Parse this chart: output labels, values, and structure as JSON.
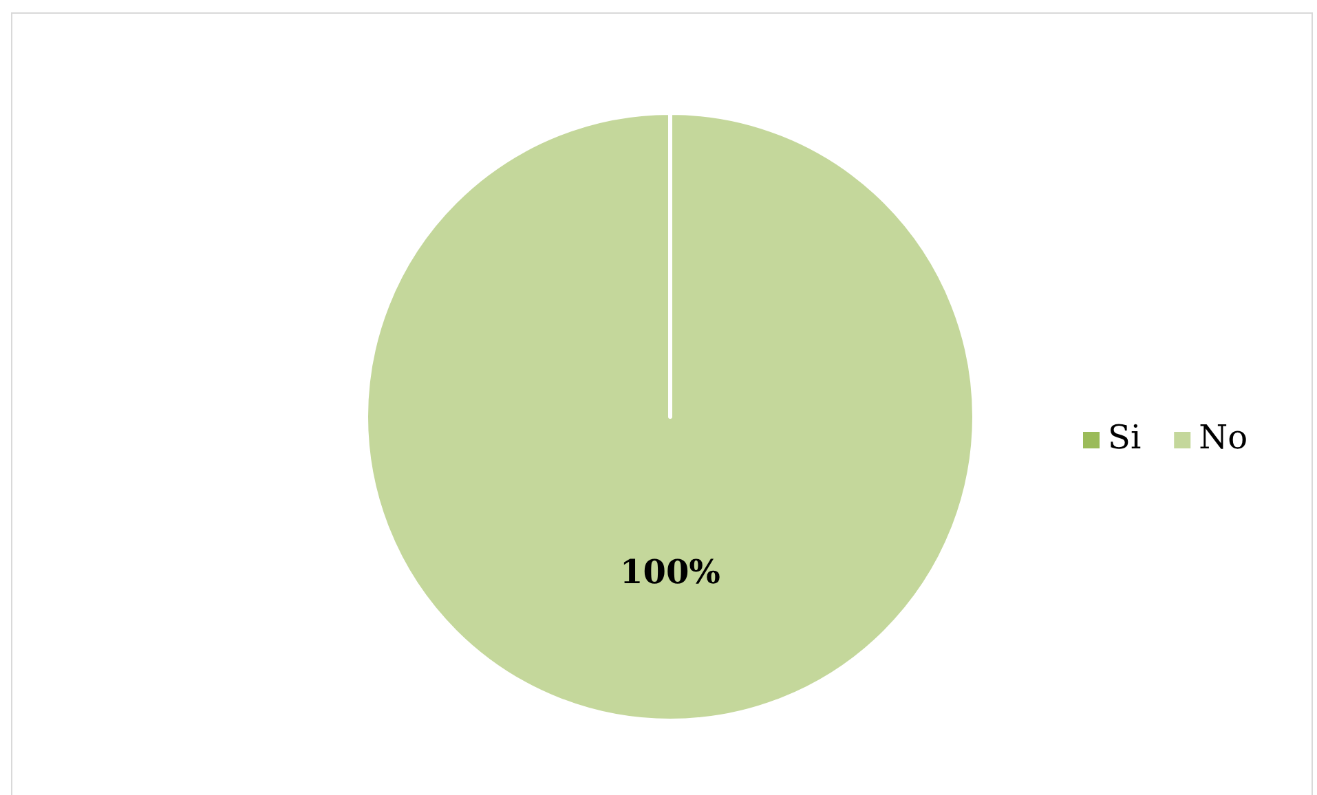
{
  "chart_data": {
    "type": "pie",
    "categories": [
      "Si",
      "No"
    ],
    "values": [
      0,
      100
    ],
    "colors": [
      "#9bbb59",
      "#c4d79b"
    ],
    "value_labels": [
      null,
      "100%"
    ],
    "legend": "right"
  }
}
